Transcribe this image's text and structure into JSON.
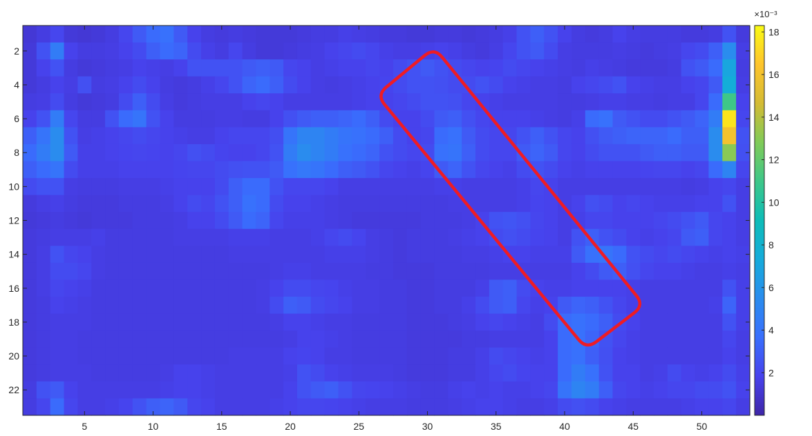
{
  "chart_data": {
    "type": "heatmap",
    "title": "",
    "xlabel": "",
    "ylabel": "",
    "x_range": [
      0.5,
      53.5
    ],
    "y_range": [
      0.5,
      23.5
    ],
    "y_reversed": true,
    "x_ticks": [
      5,
      10,
      15,
      20,
      25,
      30,
      35,
      40,
      45,
      50
    ],
    "y_ticks": [
      2,
      4,
      6,
      8,
      10,
      12,
      14,
      16,
      18,
      20,
      22
    ],
    "colormap": "parula",
    "colorbar": {
      "range": [
        0,
        18.3
      ],
      "ticks": [
        2,
        4,
        6,
        8,
        10,
        12,
        14,
        16,
        18
      ],
      "exponent_label": "×10⁻³"
    },
    "grid": false,
    "legend": "none",
    "annotation": {
      "shape": "rounded-rectangle",
      "color": "#ee1c25",
      "corners": [
        [
          30.5,
          1.8
        ],
        [
          45.8,
          17.0
        ],
        [
          41.6,
          19.6
        ],
        [
          26.3,
          4.6
        ]
      ]
    },
    "rows_labels": "rows 1-23 (top to bottom), columns 1-53, values ×10⁻³",
    "values": [
      [
        1.2,
        1.5,
        2.0,
        1.3,
        1.2,
        1.3,
        1.5,
        2.0,
        2.8,
        3.5,
        3.8,
        2.8,
        1.8,
        1.5,
        1.4,
        1.5,
        1.4,
        1.3,
        1.3,
        1.3,
        1.4,
        1.5,
        1.5,
        1.7,
        1.6,
        1.5,
        1.4,
        1.4,
        1.3,
        1.3,
        1.4,
        1.4,
        1.3,
        1.4,
        1.5,
        1.7,
        2.5,
        3.0,
        2.5,
        1.8,
        1.5,
        1.4,
        1.5,
        1.8,
        1.6,
        1.5,
        1.5,
        1.5,
        1.4,
        1.4,
        1.5,
        2.5,
        1.4
      ],
      [
        1.3,
        2.5,
        4.5,
        1.8,
        1.5,
        1.5,
        1.6,
        1.8,
        2.2,
        3.0,
        3.5,
        3.2,
        2.2,
        1.7,
        1.5,
        2.0,
        1.5,
        1.3,
        1.3,
        1.4,
        1.5,
        1.6,
        1.8,
        2.0,
        2.2,
        2.0,
        1.7,
        1.6,
        1.6,
        1.7,
        1.8,
        1.7,
        1.5,
        1.4,
        1.6,
        2.0,
        2.5,
        2.8,
        2.2,
        1.6,
        1.5,
        1.5,
        1.5,
        1.6,
        1.5,
        1.4,
        1.5,
        1.6,
        2.0,
        2.2,
        3.0,
        5.5,
        1.6
      ],
      [
        1.3,
        1.8,
        2.5,
        1.5,
        1.3,
        1.4,
        1.5,
        1.6,
        1.8,
        1.7,
        1.6,
        1.8,
        2.5,
        2.5,
        2.5,
        2.5,
        2.8,
        3.0,
        2.8,
        2.0,
        1.8,
        1.6,
        1.7,
        1.8,
        1.8,
        2.0,
        1.8,
        2.2,
        2.5,
        2.8,
        2.5,
        2.2,
        2.0,
        1.8,
        1.9,
        2.2,
        2.0,
        1.8,
        1.7,
        1.6,
        1.5,
        1.7,
        1.6,
        1.5,
        1.4,
        1.4,
        1.4,
        1.5,
        2.5,
        2.8,
        3.5,
        7.0,
        1.5
      ],
      [
        1.3,
        1.5,
        1.8,
        1.6,
        2.4,
        1.5,
        1.6,
        1.8,
        2.2,
        1.8,
        1.5,
        1.4,
        1.5,
        1.7,
        2.0,
        2.5,
        3.2,
        3.5,
        3.0,
        2.2,
        1.8,
        1.6,
        1.5,
        1.6,
        1.7,
        1.8,
        1.9,
        2.2,
        2.5,
        2.5,
        2.4,
        2.2,
        2.2,
        2.5,
        2.2,
        1.8,
        1.7,
        1.6,
        1.6,
        1.5,
        1.8,
        2.0,
        2.2,
        2.5,
        1.8,
        1.7,
        1.6,
        1.6,
        1.8,
        2.0,
        2.8,
        7.5,
        1.6
      ],
      [
        1.5,
        1.6,
        2.2,
        1.5,
        1.3,
        1.4,
        1.5,
        2.2,
        3.0,
        2.2,
        1.6,
        1.4,
        1.5,
        1.6,
        1.6,
        1.6,
        1.8,
        2.0,
        1.8,
        1.6,
        1.6,
        1.6,
        1.6,
        1.6,
        1.7,
        1.8,
        1.8,
        2.0,
        2.2,
        2.5,
        2.5,
        2.4,
        2.0,
        1.8,
        1.7,
        1.6,
        1.6,
        1.6,
        1.6,
        1.5,
        1.5,
        1.6,
        1.7,
        1.7,
        1.6,
        1.6,
        1.5,
        1.6,
        1.6,
        2.0,
        3.5,
        11.0,
        1.8
      ],
      [
        1.8,
        2.5,
        4.5,
        2.0,
        1.5,
        1.5,
        2.5,
        3.5,
        4.0,
        2.5,
        1.8,
        1.5,
        1.5,
        1.5,
        1.6,
        1.6,
        1.5,
        1.5,
        1.8,
        2.4,
        2.8,
        3.0,
        3.0,
        3.2,
        3.5,
        3.0,
        2.2,
        1.8,
        1.8,
        2.2,
        2.8,
        3.0,
        2.4,
        2.0,
        1.8,
        1.8,
        1.8,
        1.7,
        1.6,
        1.5,
        1.7,
        3.5,
        3.8,
        2.8,
        2.5,
        2.2,
        2.2,
        2.5,
        2.8,
        3.2,
        4.5,
        17.5,
        2.0
      ],
      [
        3.0,
        4.0,
        5.5,
        2.5,
        1.6,
        1.7,
        1.8,
        2.0,
        2.2,
        2.0,
        1.8,
        1.7,
        1.6,
        1.6,
        1.8,
        2.0,
        2.0,
        2.0,
        2.3,
        4.0,
        5.0,
        5.0,
        4.5,
        4.0,
        3.8,
        3.5,
        3.0,
        2.2,
        1.8,
        2.0,
        3.5,
        3.8,
        2.8,
        2.2,
        2.0,
        2.0,
        2.5,
        3.0,
        2.5,
        2.0,
        1.8,
        2.4,
        2.8,
        3.0,
        3.2,
        3.2,
        3.2,
        3.5,
        3.0,
        3.0,
        5.5,
        16.0,
        2.5
      ],
      [
        3.5,
        4.5,
        5.5,
        2.8,
        1.7,
        1.7,
        1.8,
        1.9,
        2.0,
        1.9,
        1.8,
        2.0,
        2.4,
        2.2,
        1.9,
        1.8,
        1.8,
        2.0,
        2.5,
        4.5,
        5.5,
        5.0,
        4.5,
        3.8,
        3.5,
        3.2,
        2.5,
        2.2,
        2.0,
        2.2,
        3.8,
        4.0,
        3.0,
        2.2,
        2.0,
        2.0,
        2.8,
        3.2,
        2.8,
        2.0,
        1.8,
        2.2,
        2.5,
        2.5,
        2.5,
        2.8,
        3.0,
        3.0,
        2.8,
        2.8,
        5.5,
        13.0,
        2.4
      ],
      [
        3.0,
        3.5,
        4.0,
        2.2,
        1.7,
        1.7,
        1.7,
        1.8,
        1.8,
        1.8,
        1.8,
        1.9,
        2.0,
        2.0,
        2.2,
        2.4,
        2.5,
        2.5,
        2.8,
        3.8,
        4.2,
        4.0,
        3.5,
        3.0,
        2.8,
        2.5,
        2.0,
        1.8,
        1.7,
        1.9,
        2.8,
        3.2,
        2.5,
        2.0,
        1.8,
        1.7,
        2.2,
        2.5,
        2.2,
        1.8,
        1.7,
        1.8,
        1.8,
        1.8,
        1.8,
        1.9,
        2.0,
        2.0,
        1.8,
        2.0,
        3.5,
        5.0,
        2.0
      ],
      [
        2.2,
        2.5,
        2.5,
        1.6,
        1.5,
        1.5,
        1.5,
        1.6,
        1.6,
        1.6,
        1.7,
        1.8,
        1.8,
        1.8,
        2.2,
        3.0,
        3.5,
        3.5,
        2.5,
        2.0,
        2.0,
        2.0,
        1.8,
        1.6,
        1.6,
        1.6,
        1.6,
        1.6,
        1.6,
        1.6,
        1.7,
        1.7,
        1.6,
        1.6,
        1.6,
        1.6,
        1.7,
        2.0,
        1.8,
        1.6,
        1.6,
        1.6,
        1.6,
        1.6,
        1.6,
        1.6,
        1.6,
        1.6,
        1.5,
        1.6,
        1.8,
        2.0,
        1.6
      ],
      [
        1.4,
        1.6,
        1.7,
        1.5,
        1.4,
        1.4,
        1.4,
        1.5,
        1.5,
        1.5,
        1.6,
        1.8,
        2.2,
        2.0,
        2.5,
        3.0,
        3.8,
        3.5,
        2.2,
        1.8,
        1.8,
        1.7,
        1.6,
        1.5,
        1.5,
        1.5,
        1.5,
        1.5,
        1.5,
        1.5,
        1.5,
        1.6,
        1.6,
        1.6,
        1.6,
        1.6,
        1.7,
        1.9,
        1.8,
        1.6,
        1.8,
        2.4,
        2.2,
        1.8,
        2.0,
        1.8,
        1.7,
        1.7,
        1.7,
        1.8,
        1.8,
        2.5,
        1.6
      ],
      [
        1.3,
        1.4,
        1.5,
        1.4,
        1.3,
        1.4,
        1.4,
        1.4,
        1.5,
        1.5,
        1.5,
        1.6,
        1.8,
        1.8,
        2.2,
        2.8,
        3.5,
        3.2,
        2.0,
        1.7,
        1.7,
        1.7,
        1.6,
        1.5,
        1.4,
        1.4,
        1.4,
        1.4,
        1.4,
        1.5,
        1.5,
        1.5,
        1.6,
        1.8,
        2.5,
        2.6,
        2.4,
        2.0,
        1.8,
        1.6,
        1.7,
        2.0,
        2.0,
        1.8,
        1.8,
        1.8,
        2.0,
        2.2,
        2.5,
        2.8,
        2.0,
        1.8,
        1.6
      ],
      [
        1.4,
        1.5,
        1.6,
        1.6,
        1.6,
        1.7,
        1.5,
        1.5,
        1.5,
        1.5,
        1.5,
        1.6,
        1.6,
        1.6,
        1.6,
        1.7,
        1.7,
        1.7,
        1.6,
        1.6,
        1.6,
        1.7,
        2.0,
        2.2,
        1.9,
        1.6,
        1.5,
        1.4,
        1.5,
        1.5,
        1.5,
        1.6,
        1.7,
        1.8,
        2.2,
        2.4,
        2.2,
        1.9,
        1.8,
        1.6,
        2.5,
        3.0,
        2.5,
        2.2,
        1.8,
        1.7,
        1.8,
        2.0,
        2.8,
        3.0,
        2.0,
        1.8,
        1.6
      ],
      [
        1.4,
        1.6,
        2.5,
        2.0,
        1.8,
        1.6,
        1.5,
        1.5,
        1.5,
        1.5,
        1.5,
        1.5,
        1.5,
        1.5,
        1.5,
        1.6,
        1.6,
        1.6,
        1.6,
        1.6,
        1.6,
        1.6,
        1.7,
        1.7,
        1.7,
        1.6,
        1.5,
        1.4,
        1.5,
        1.5,
        1.5,
        1.5,
        1.6,
        1.6,
        1.7,
        1.8,
        1.8,
        1.7,
        1.7,
        1.7,
        2.8,
        3.8,
        4.0,
        3.5,
        2.5,
        2.2,
        2.0,
        2.2,
        2.0,
        1.8,
        1.7,
        1.8,
        1.7
      ],
      [
        1.4,
        1.6,
        2.2,
        2.2,
        2.0,
        1.6,
        1.5,
        1.5,
        1.5,
        1.5,
        1.5,
        1.5,
        1.5,
        1.5,
        1.5,
        1.5,
        1.5,
        1.5,
        1.6,
        1.7,
        1.7,
        1.6,
        1.6,
        1.6,
        1.6,
        1.5,
        1.5,
        1.4,
        1.4,
        1.4,
        1.5,
        1.5,
        1.5,
        1.5,
        1.6,
        1.6,
        1.6,
        1.6,
        1.6,
        1.6,
        1.8,
        2.2,
        2.8,
        3.0,
        2.4,
        2.0,
        1.8,
        1.8,
        1.7,
        1.6,
        1.6,
        1.7,
        1.6
      ],
      [
        1.4,
        1.6,
        2.0,
        1.8,
        1.7,
        1.5,
        1.5,
        1.5,
        1.5,
        1.5,
        1.5,
        1.5,
        1.5,
        1.5,
        1.5,
        1.5,
        1.5,
        1.6,
        1.8,
        2.2,
        2.2,
        2.0,
        1.9,
        1.7,
        1.6,
        1.6,
        1.5,
        1.5,
        1.4,
        1.4,
        1.5,
        1.5,
        1.5,
        1.7,
        2.8,
        3.0,
        2.2,
        1.8,
        1.7,
        1.7,
        1.8,
        1.8,
        1.8,
        1.8,
        1.7,
        1.6,
        1.6,
        1.6,
        1.6,
        1.6,
        1.6,
        2.5,
        1.7
      ],
      [
        1.4,
        1.5,
        1.8,
        1.7,
        1.6,
        1.5,
        1.5,
        1.5,
        1.5,
        1.5,
        1.5,
        1.5,
        1.5,
        1.5,
        1.5,
        1.5,
        1.5,
        1.6,
        2.2,
        3.0,
        2.8,
        2.2,
        2.0,
        1.8,
        1.6,
        1.6,
        1.5,
        1.5,
        1.4,
        1.4,
        1.5,
        1.5,
        1.7,
        2.2,
        2.8,
        3.0,
        2.0,
        1.7,
        1.8,
        2.8,
        3.2,
        3.0,
        2.5,
        2.0,
        1.7,
        1.6,
        1.6,
        1.6,
        1.6,
        1.6,
        1.7,
        3.2,
        1.7
      ],
      [
        1.4,
        1.5,
        1.6,
        1.6,
        1.6,
        1.5,
        1.5,
        1.5,
        1.5,
        1.5,
        1.5,
        1.5,
        1.5,
        1.5,
        1.5,
        1.5,
        1.5,
        1.5,
        1.6,
        1.8,
        1.8,
        1.7,
        1.6,
        1.6,
        1.5,
        1.5,
        1.5,
        1.5,
        1.4,
        1.4,
        1.4,
        1.5,
        1.6,
        1.8,
        2.0,
        1.8,
        1.7,
        1.6,
        2.2,
        3.5,
        3.8,
        3.5,
        3.0,
        2.2,
        1.8,
        1.6,
        1.6,
        1.6,
        1.6,
        1.6,
        1.6,
        2.5,
        1.7
      ],
      [
        1.4,
        1.5,
        1.6,
        1.6,
        1.5,
        1.5,
        1.5,
        1.5,
        1.5,
        1.5,
        1.5,
        1.5,
        1.5,
        1.5,
        1.5,
        1.5,
        1.5,
        1.5,
        1.5,
        1.6,
        1.8,
        1.8,
        1.7,
        1.6,
        1.5,
        1.5,
        1.5,
        1.5,
        1.4,
        1.4,
        1.4,
        1.4,
        1.5,
        1.5,
        1.6,
        1.6,
        1.6,
        1.6,
        1.8,
        3.5,
        3.8,
        3.2,
        2.5,
        2.0,
        1.7,
        1.6,
        1.6,
        1.6,
        1.6,
        1.6,
        1.6,
        2.0,
        1.6
      ],
      [
        1.4,
        1.5,
        1.6,
        1.6,
        1.5,
        1.5,
        1.5,
        1.5,
        1.5,
        1.5,
        1.5,
        1.5,
        1.5,
        1.5,
        1.5,
        1.6,
        1.6,
        1.6,
        1.6,
        1.8,
        1.9,
        1.8,
        1.6,
        1.6,
        1.5,
        1.5,
        1.5,
        1.5,
        1.4,
        1.4,
        1.4,
        1.5,
        1.5,
        1.7,
        2.2,
        2.0,
        1.8,
        1.7,
        1.8,
        3.5,
        3.8,
        3.0,
        2.4,
        1.8,
        1.7,
        1.6,
        1.6,
        1.6,
        1.6,
        1.6,
        1.6,
        1.8,
        1.6
      ],
      [
        1.4,
        1.5,
        1.6,
        1.6,
        1.6,
        1.5,
        1.5,
        1.5,
        1.5,
        1.5,
        1.6,
        1.8,
        1.8,
        1.7,
        1.6,
        1.6,
        1.6,
        1.6,
        1.6,
        1.7,
        2.5,
        2.2,
        1.8,
        1.7,
        1.6,
        1.6,
        1.6,
        1.5,
        1.4,
        1.4,
        1.4,
        1.5,
        1.5,
        1.7,
        2.0,
        2.2,
        1.9,
        1.8,
        1.8,
        3.5,
        4.5,
        3.8,
        2.5,
        1.8,
        1.8,
        1.6,
        1.7,
        2.2,
        1.8,
        1.7,
        1.8,
        2.2,
        1.7
      ],
      [
        1.5,
        2.5,
        2.8,
        1.8,
        1.6,
        1.6,
        1.6,
        1.6,
        1.6,
        1.6,
        1.7,
        1.8,
        1.8,
        1.7,
        1.6,
        1.6,
        1.6,
        1.6,
        1.6,
        1.8,
        2.5,
        2.8,
        3.0,
        2.5,
        2.0,
        1.9,
        1.8,
        1.7,
        1.6,
        1.5,
        1.5,
        1.7,
        1.8,
        1.7,
        1.8,
        1.7,
        1.7,
        1.8,
        2.0,
        4.0,
        5.0,
        4.5,
        3.0,
        2.0,
        1.8,
        1.7,
        1.8,
        2.0,
        2.0,
        2.2,
        2.2,
        2.5,
        1.8
      ],
      [
        1.5,
        2.0,
        3.5,
        2.0,
        1.6,
        1.6,
        1.7,
        1.9,
        2.5,
        3.0,
        3.2,
        2.8,
        2.0,
        1.8,
        1.6,
        1.6,
        1.6,
        1.6,
        1.7,
        1.8,
        2.0,
        2.0,
        1.9,
        1.8,
        1.7,
        1.6,
        1.6,
        1.6,
        1.5,
        1.5,
        1.5,
        1.6,
        1.7,
        1.8,
        1.8,
        1.7,
        1.6,
        1.6,
        1.7,
        2.2,
        2.4,
        2.2,
        1.8,
        1.7,
        1.6,
        1.6,
        1.6,
        1.6,
        1.7,
        1.8,
        1.8,
        2.0,
        1.6
      ]
    ]
  }
}
